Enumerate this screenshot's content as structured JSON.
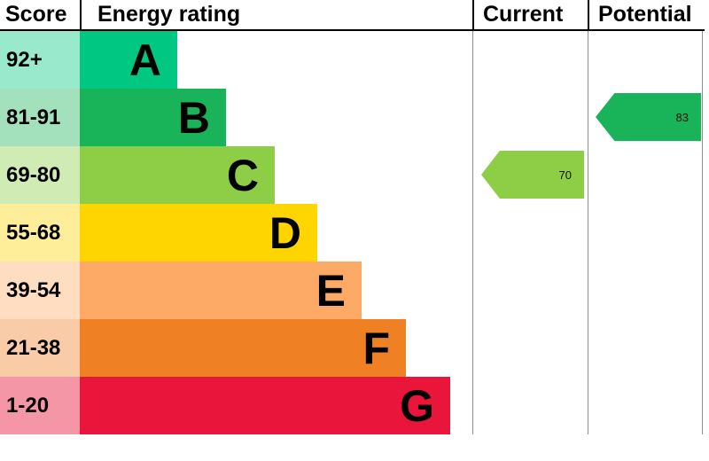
{
  "header": {
    "score": "Score",
    "energy_rating": "Energy rating",
    "current": "Current",
    "potential": "Potential"
  },
  "chart_data": {
    "type": "bar",
    "title": "Energy rating",
    "xlabel": "Score",
    "bands": [
      {
        "letter": "A",
        "score_range": "92+",
        "color": "#00c781",
        "tint": "#99e9cd"
      },
      {
        "letter": "B",
        "score_range": "81-91",
        "color": "#19b459",
        "tint": "#a3e1bd"
      },
      {
        "letter": "C",
        "score_range": "69-80",
        "color": "#8dce46",
        "tint": "#d1ebb5"
      },
      {
        "letter": "D",
        "score_range": "55-68",
        "color": "#ffd500",
        "tint": "#ffee99"
      },
      {
        "letter": "E",
        "score_range": "39-54",
        "color": "#fcaa65",
        "tint": "#feddc1"
      },
      {
        "letter": "F",
        "score_range": "21-38",
        "color": "#ef8023",
        "tint": "#f9cca7"
      },
      {
        "letter": "G",
        "score_range": "1-20",
        "color": "#e9153b",
        "tint": "#f596a7"
      }
    ],
    "current": {
      "value": "70",
      "band": "C",
      "color": "#8dce46"
    },
    "potential": {
      "value": "83",
      "band": "B",
      "color": "#19b459"
    }
  }
}
